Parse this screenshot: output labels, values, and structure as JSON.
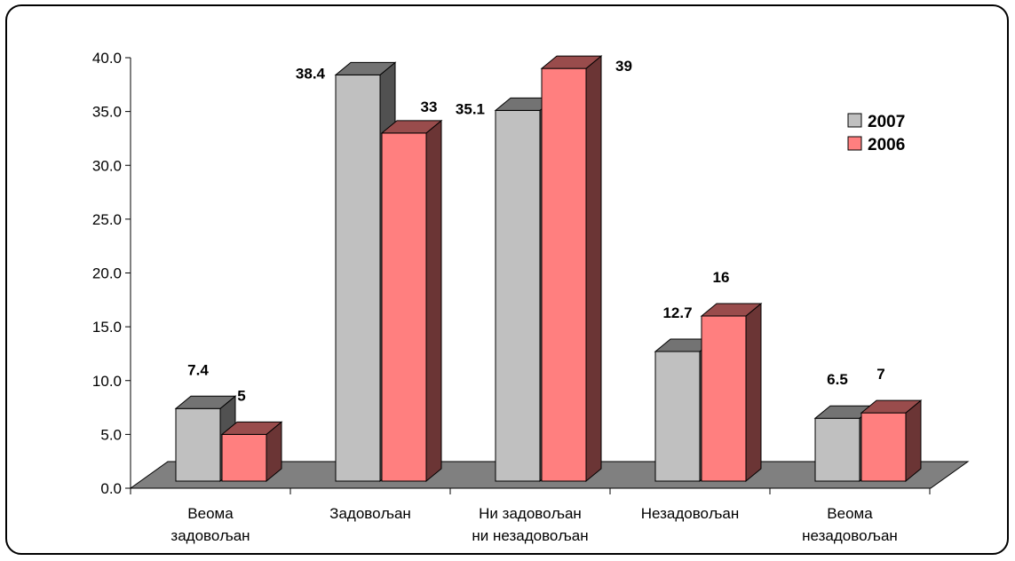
{
  "chart_data": {
    "type": "bar",
    "title": "",
    "xlabel": "",
    "ylabel": "",
    "ylim": [
      0,
      40
    ],
    "yticks": [
      "0.0",
      "5.0",
      "10.0",
      "15.0",
      "20.0",
      "25.0",
      "30.0",
      "35.0",
      "40.0"
    ],
    "categories": [
      [
        "Веома",
        "задовољан"
      ],
      [
        "Задовољан"
      ],
      [
        "Ни задовољан",
        "ни незадовољан"
      ],
      [
        "Незадовољан"
      ],
      [
        "Веома",
        "незадовољан"
      ]
    ],
    "series": [
      {
        "name": "2007",
        "values": [
          7.4,
          38.4,
          35.1,
          12.7,
          6.5
        ],
        "labels": [
          "7.4",
          "38.4",
          "35.1",
          "12.7",
          "6.5"
        ],
        "color": "#c0c0c0"
      },
      {
        "name": "2006",
        "values": [
          5,
          33,
          39,
          16,
          7
        ],
        "labels": [
          "5",
          "33",
          "39",
          "16",
          "7"
        ],
        "color": "#ff7f7f"
      }
    ],
    "legend_position": "right",
    "grid": false,
    "style": "3d-column"
  }
}
